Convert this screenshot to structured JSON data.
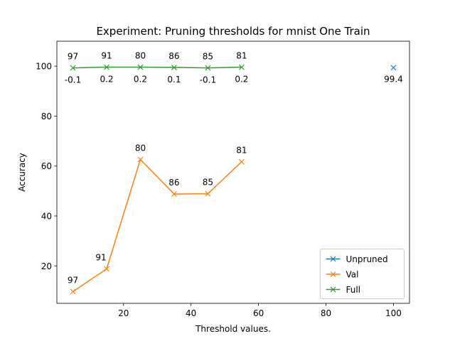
{
  "chart_data": {
    "type": "line",
    "title": "Experiment: Pruning thresholds for mnist One Train",
    "xlabel": "Threshold values.",
    "ylabel": "Accuracy",
    "xlim": [
      0.25,
      104.75
    ],
    "ylim": [
      5.0,
      110.0
    ],
    "xticks": [
      20,
      40,
      60,
      80,
      100
    ],
    "yticks": [
      20,
      40,
      60,
      80,
      100
    ],
    "legend_position": "lower-right",
    "series": [
      {
        "name": "Unpruned",
        "color": "#1f77b4",
        "marker": "x",
        "x": [
          100
        ],
        "y": [
          99.4
        ],
        "annotations": [
          {
            "text": "99.4",
            "position": "below"
          }
        ]
      },
      {
        "name": "Val",
        "color": "#ff7f0e",
        "marker": "x",
        "x": [
          5,
          15,
          25,
          35,
          45,
          55
        ],
        "y": [
          9.7,
          18.8,
          62.6,
          48.8,
          48.9,
          61.7
        ],
        "annotations": [
          {
            "text": "97",
            "position": "above"
          },
          {
            "text": "91",
            "position": "above-left"
          },
          {
            "text": "80",
            "position": "above"
          },
          {
            "text": "86",
            "position": "above"
          },
          {
            "text": "85",
            "position": "above"
          },
          {
            "text": "81",
            "position": "above"
          }
        ]
      },
      {
        "name": "Full",
        "color": "#2ca02c",
        "marker": "x",
        "x": [
          5,
          15,
          25,
          35,
          45,
          55
        ],
        "y": [
          99.3,
          99.6,
          99.6,
          99.5,
          99.3,
          99.6
        ],
        "annotations": [
          {
            "text": "97",
            "position": "above"
          },
          {
            "text": "91",
            "position": "above"
          },
          {
            "text": "80",
            "position": "above"
          },
          {
            "text": "86",
            "position": "above"
          },
          {
            "text": "85",
            "position": "above"
          },
          {
            "text": "81",
            "position": "above"
          }
        ],
        "deltas": [
          "-0.1",
          "0.2",
          "0.2",
          "0.1",
          "-0.1",
          "0.2"
        ]
      }
    ]
  }
}
